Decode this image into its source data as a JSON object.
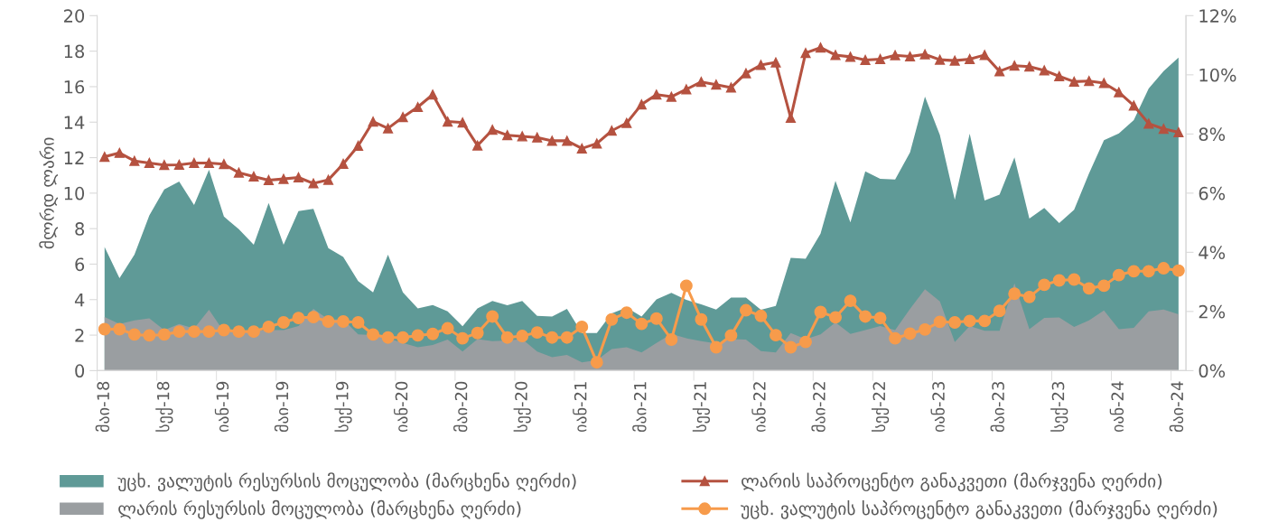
{
  "chart_data": {
    "type": "area",
    "ylabel": "მლრდ ლარი",
    "categories": [
      "მაი-18",
      null,
      null,
      null,
      "სექ-18",
      null,
      null,
      null,
      "იან-19",
      null,
      null,
      null,
      "მაი-19",
      null,
      null,
      null,
      "სექ-19",
      null,
      null,
      null,
      "იან-20",
      null,
      null,
      null,
      "მაი-20",
      null,
      null,
      null,
      "სექ-20",
      null,
      null,
      null,
      "იან-21",
      null,
      null,
      null,
      "მაი-21",
      null,
      null,
      null,
      "სექ-21",
      null,
      null,
      null,
      "იან-22",
      null,
      null,
      null,
      "მაი-22",
      null,
      null,
      null,
      "სექ-22",
      null,
      null,
      null,
      "იან-23",
      null,
      null,
      null,
      "მაი-23",
      null,
      null,
      null,
      "სექ-23",
      null,
      null,
      null,
      "იან-24",
      null,
      null,
      null,
      "მაი-24"
    ],
    "series": [
      {
        "name": "უცხ. ვალუტის რესურსის მოცულობა (მარცხენა ღერძი)",
        "color": "#5f9a97",
        "values": [
          6.96,
          5.21,
          6.53,
          8.74,
          10.21,
          10.65,
          9.33,
          11.31,
          8.68,
          7.97,
          7.09,
          9.45,
          7.09,
          8.99,
          9.11,
          6.9,
          6.4,
          5.04,
          4.41,
          6.53,
          4.41,
          3.51,
          3.7,
          3.34,
          2.5,
          3.51,
          3.93,
          3.68,
          3.93,
          3.09,
          3.05,
          3.48,
          2.12,
          2.12,
          3.22,
          3.56,
          3.05,
          4.02,
          4.38,
          3.99,
          3.73,
          3.44,
          4.11,
          4.11,
          3.43,
          3.65,
          6.36,
          6.31,
          7.72,
          10.69,
          8.35,
          11.23,
          10.81,
          10.77,
          12.3,
          15.44,
          13.27,
          9.63,
          13.35,
          9.58,
          9.92,
          12.01,
          8.57,
          9.16,
          8.31,
          9.07,
          11.11,
          12.98,
          13.37,
          14.11,
          15.89,
          16.88,
          17.64
        ]
      },
      {
        "name": "ლარის რესურსის მოცულობა (მარცხენა ღერძი)",
        "color": "#9a9ea1",
        "values": [
          3.02,
          2.63,
          2.83,
          2.94,
          2.29,
          2.63,
          2.37,
          3.43,
          2.2,
          2.23,
          2.23,
          2.29,
          2.29,
          2.51,
          3.48,
          2.88,
          2.88,
          2.04,
          2.0,
          1.82,
          1.56,
          1.32,
          1.44,
          1.75,
          1.07,
          1.78,
          1.66,
          1.7,
          1.78,
          1.07,
          0.76,
          0.88,
          0.47,
          0.59,
          1.22,
          1.32,
          1.02,
          1.56,
          2.07,
          1.82,
          1.66,
          1.53,
          1.78,
          1.75,
          1.1,
          1.02,
          2.12,
          1.78,
          2.04,
          2.71,
          2.07,
          2.29,
          2.51,
          2.29,
          3.48,
          4.58,
          3.9,
          1.61,
          2.51,
          2.24,
          2.24,
          4.92,
          2.34,
          2.97,
          2.99,
          2.46,
          2.83,
          3.39,
          2.34,
          2.41,
          3.34,
          3.44,
          3.17
        ]
      },
      {
        "name": "ლარის საპროცენტო განაკვეთი (მარჯვენა ღერძი)",
        "type": "line",
        "axis": "y2",
        "marker": "triangle",
        "color": "#b55240",
        "values": [
          7.23,
          7.36,
          7.09,
          7.02,
          6.95,
          6.96,
          7.02,
          7.02,
          6.98,
          6.69,
          6.56,
          6.44,
          6.48,
          6.53,
          6.33,
          6.45,
          6.99,
          7.6,
          8.42,
          8.19,
          8.57,
          8.91,
          9.33,
          8.42,
          8.39,
          7.61,
          8.14,
          7.96,
          7.92,
          7.88,
          7.77,
          7.77,
          7.51,
          7.68,
          8.11,
          8.37,
          9.0,
          9.33,
          9.26,
          9.51,
          9.76,
          9.67,
          9.57,
          10.05,
          10.33,
          10.42,
          8.55,
          10.74,
          10.92,
          10.67,
          10.61,
          10.5,
          10.53,
          10.66,
          10.62,
          10.69,
          10.51,
          10.48,
          10.53,
          10.67,
          10.12,
          10.31,
          10.28,
          10.15,
          9.95,
          9.77,
          9.79,
          9.72,
          9.41,
          8.96,
          8.35,
          8.17,
          8.06
        ]
      },
      {
        "name": "უცხ. ვალუტის საპროცენტო განაკვეთი (მარჯვენა ღერძი)",
        "type": "line",
        "axis": "y2",
        "marker": "circle",
        "color": "#f79b4b",
        "values": [
          1.4,
          1.4,
          1.22,
          1.19,
          1.22,
          1.32,
          1.32,
          1.32,
          1.37,
          1.32,
          1.32,
          1.48,
          1.63,
          1.78,
          1.81,
          1.66,
          1.66,
          1.63,
          1.22,
          1.12,
          1.12,
          1.19,
          1.24,
          1.43,
          1.09,
          1.27,
          1.83,
          1.12,
          1.17,
          1.29,
          1.12,
          1.12,
          1.48,
          0.28,
          1.73,
          1.96,
          1.58,
          1.76,
          1.05,
          2.87,
          1.73,
          0.79,
          1.19,
          2.04,
          1.85,
          1.2,
          0.79,
          0.97,
          1.98,
          1.8,
          2.36,
          1.83,
          1.78,
          1.09,
          1.25,
          1.39,
          1.65,
          1.63,
          1.68,
          1.68,
          2.02,
          2.6,
          2.49,
          2.9,
          3.05,
          3.08,
          2.78,
          2.87,
          3.23,
          3.36,
          3.36,
          3.46,
          3.38
        ]
      }
    ],
    "ylim": [
      0,
      20
    ],
    "yticks": [
      0,
      2,
      4,
      6,
      8,
      10,
      12,
      14,
      16,
      18,
      20
    ],
    "y2lim": [
      0,
      12
    ],
    "y2ticks": [
      {
        "value": 0,
        "label": "0%"
      },
      {
        "value": 2,
        "label": "2%"
      },
      {
        "value": 4,
        "label": "4%"
      },
      {
        "value": 6,
        "label": "6%"
      },
      {
        "value": 8,
        "label": "8%"
      },
      {
        "value": 10,
        "label": "10%"
      },
      {
        "value": 12,
        "label": "12%"
      }
    ],
    "grid": false,
    "legend": "bottom"
  }
}
